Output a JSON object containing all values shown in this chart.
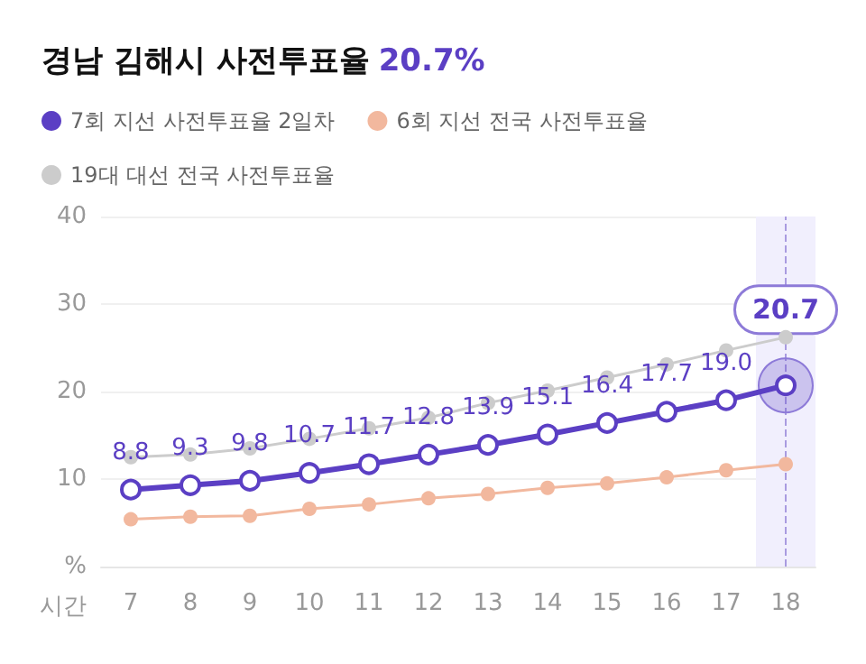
{
  "chart_data": {
    "type": "line",
    "title": "경남 김해시 사전투표율",
    "subtitle": "20.7%",
    "xlabel": "시간",
    "categories": [
      "7",
      "8",
      "9",
      "10",
      "11",
      "12",
      "13",
      "14",
      "15",
      "16",
      "17",
      "18"
    ],
    "series": [
      {
        "name": "7회 지선 사전투표율 2일차",
        "color": "#5b3fc4",
        "values": [
          8.8,
          9.3,
          9.8,
          10.7,
          11.7,
          12.8,
          13.9,
          15.1,
          16.4,
          17.7,
          19.0,
          20.7
        ],
        "value_labels": [
          "8.8",
          "9.3",
          "9.8",
          "10.7",
          "11.7",
          "12.8",
          "13.9",
          "15.1",
          "16.4",
          "17.7",
          "19.0",
          null
        ]
      },
      {
        "name": "6회 지선 전국 사전투표율",
        "color": "#f2b89e",
        "values": [
          5.4,
          5.7,
          5.8,
          6.6,
          7.1,
          7.8,
          8.3,
          9.0,
          9.5,
          10.2,
          11.0,
          11.7
        ]
      },
      {
        "name": "19대 대선 전국 사전투표율",
        "color": "#cccccc",
        "values": [
          12.5,
          12.8,
          13.5,
          14.6,
          15.8,
          17.0,
          18.7,
          20.1,
          21.6,
          23.1,
          24.7,
          26.2
        ]
      }
    ],
    "ylim": [
      0,
      40
    ],
    "yticks": [
      {
        "value": 0,
        "label": "%"
      },
      10,
      20,
      30,
      40
    ],
    "grid": "y",
    "legend": "top left",
    "marker": "circle",
    "line_style": "solid",
    "bands": [
      {
        "axis": "x",
        "from": "18",
        "to": "18",
        "color": "#f1effd"
      }
    ],
    "ref_lines": [
      {
        "axis": "x",
        "value": "18",
        "line_style": "dashed",
        "color": "#a99be0"
      }
    ],
    "annotations": [
      {
        "text": "20.7",
        "x": "18",
        "y": 20.7
      }
    ]
  }
}
